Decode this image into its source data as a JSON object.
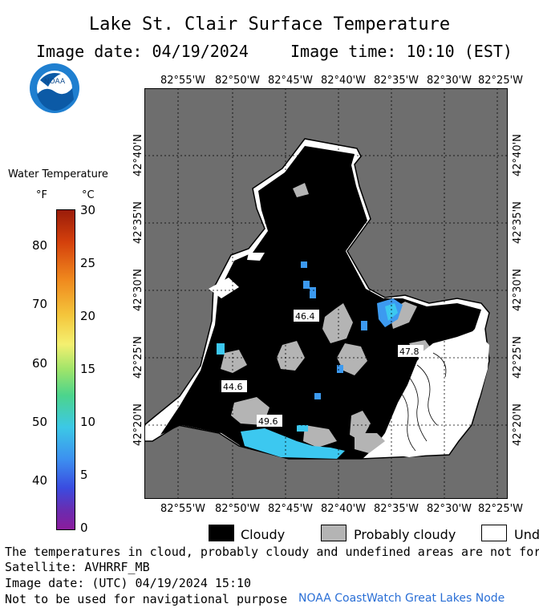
{
  "header": {
    "title": "Lake St. Clair Surface Temperature",
    "image_date": "Image date: 04/19/2024",
    "image_time": "Image time: 10:10 (EST)"
  },
  "logo": {
    "text": "NOAA",
    "icon": "noaa-logo-icon"
  },
  "map": {
    "lon_labels": [
      "82°55'W",
      "82°50'W",
      "82°45'W",
      "82°40'W",
      "82°35'W",
      "82°30'W",
      "82°25'W"
    ],
    "lat_labels": [
      "42°40'N",
      "42°35'N",
      "42°30'N",
      "42°25'N",
      "42°20'N"
    ],
    "temperature_labels": [
      "46.4",
      "47.8",
      "44.6",
      "49.6"
    ],
    "colors": {
      "land": "#6e6e6e",
      "cloudy": "#000000",
      "probably_cloudy": "#b4b4b4",
      "undefined": "#ffffff",
      "water_warm": "#3cc8f0",
      "water_mid": "#3c9af0",
      "grid": "#000000"
    }
  },
  "colorbar": {
    "title": "Water Temperature",
    "unit_f": "°F",
    "unit_c": "°C",
    "f_ticks": [
      "80",
      "70",
      "60",
      "50",
      "40"
    ],
    "c_ticks": [
      "30",
      "25",
      "20",
      "15",
      "10",
      "5",
      "0"
    ]
  },
  "legend": {
    "cloudy": "Cloudy",
    "probably_cloudy": "Probably cloudy",
    "undefined": "Unde"
  },
  "footer": {
    "note": "The temperatures in cloud, probably cloudy and undefined areas are not for oper",
    "satellite": "Satellite: AVHRRF_MB",
    "utc_date": "Image date: (UTC) 04/19/2024  15:10",
    "disclaimer": "Not to be used for navigational purpose",
    "credit": "NOAA CoastWatch Great Lakes Node"
  }
}
